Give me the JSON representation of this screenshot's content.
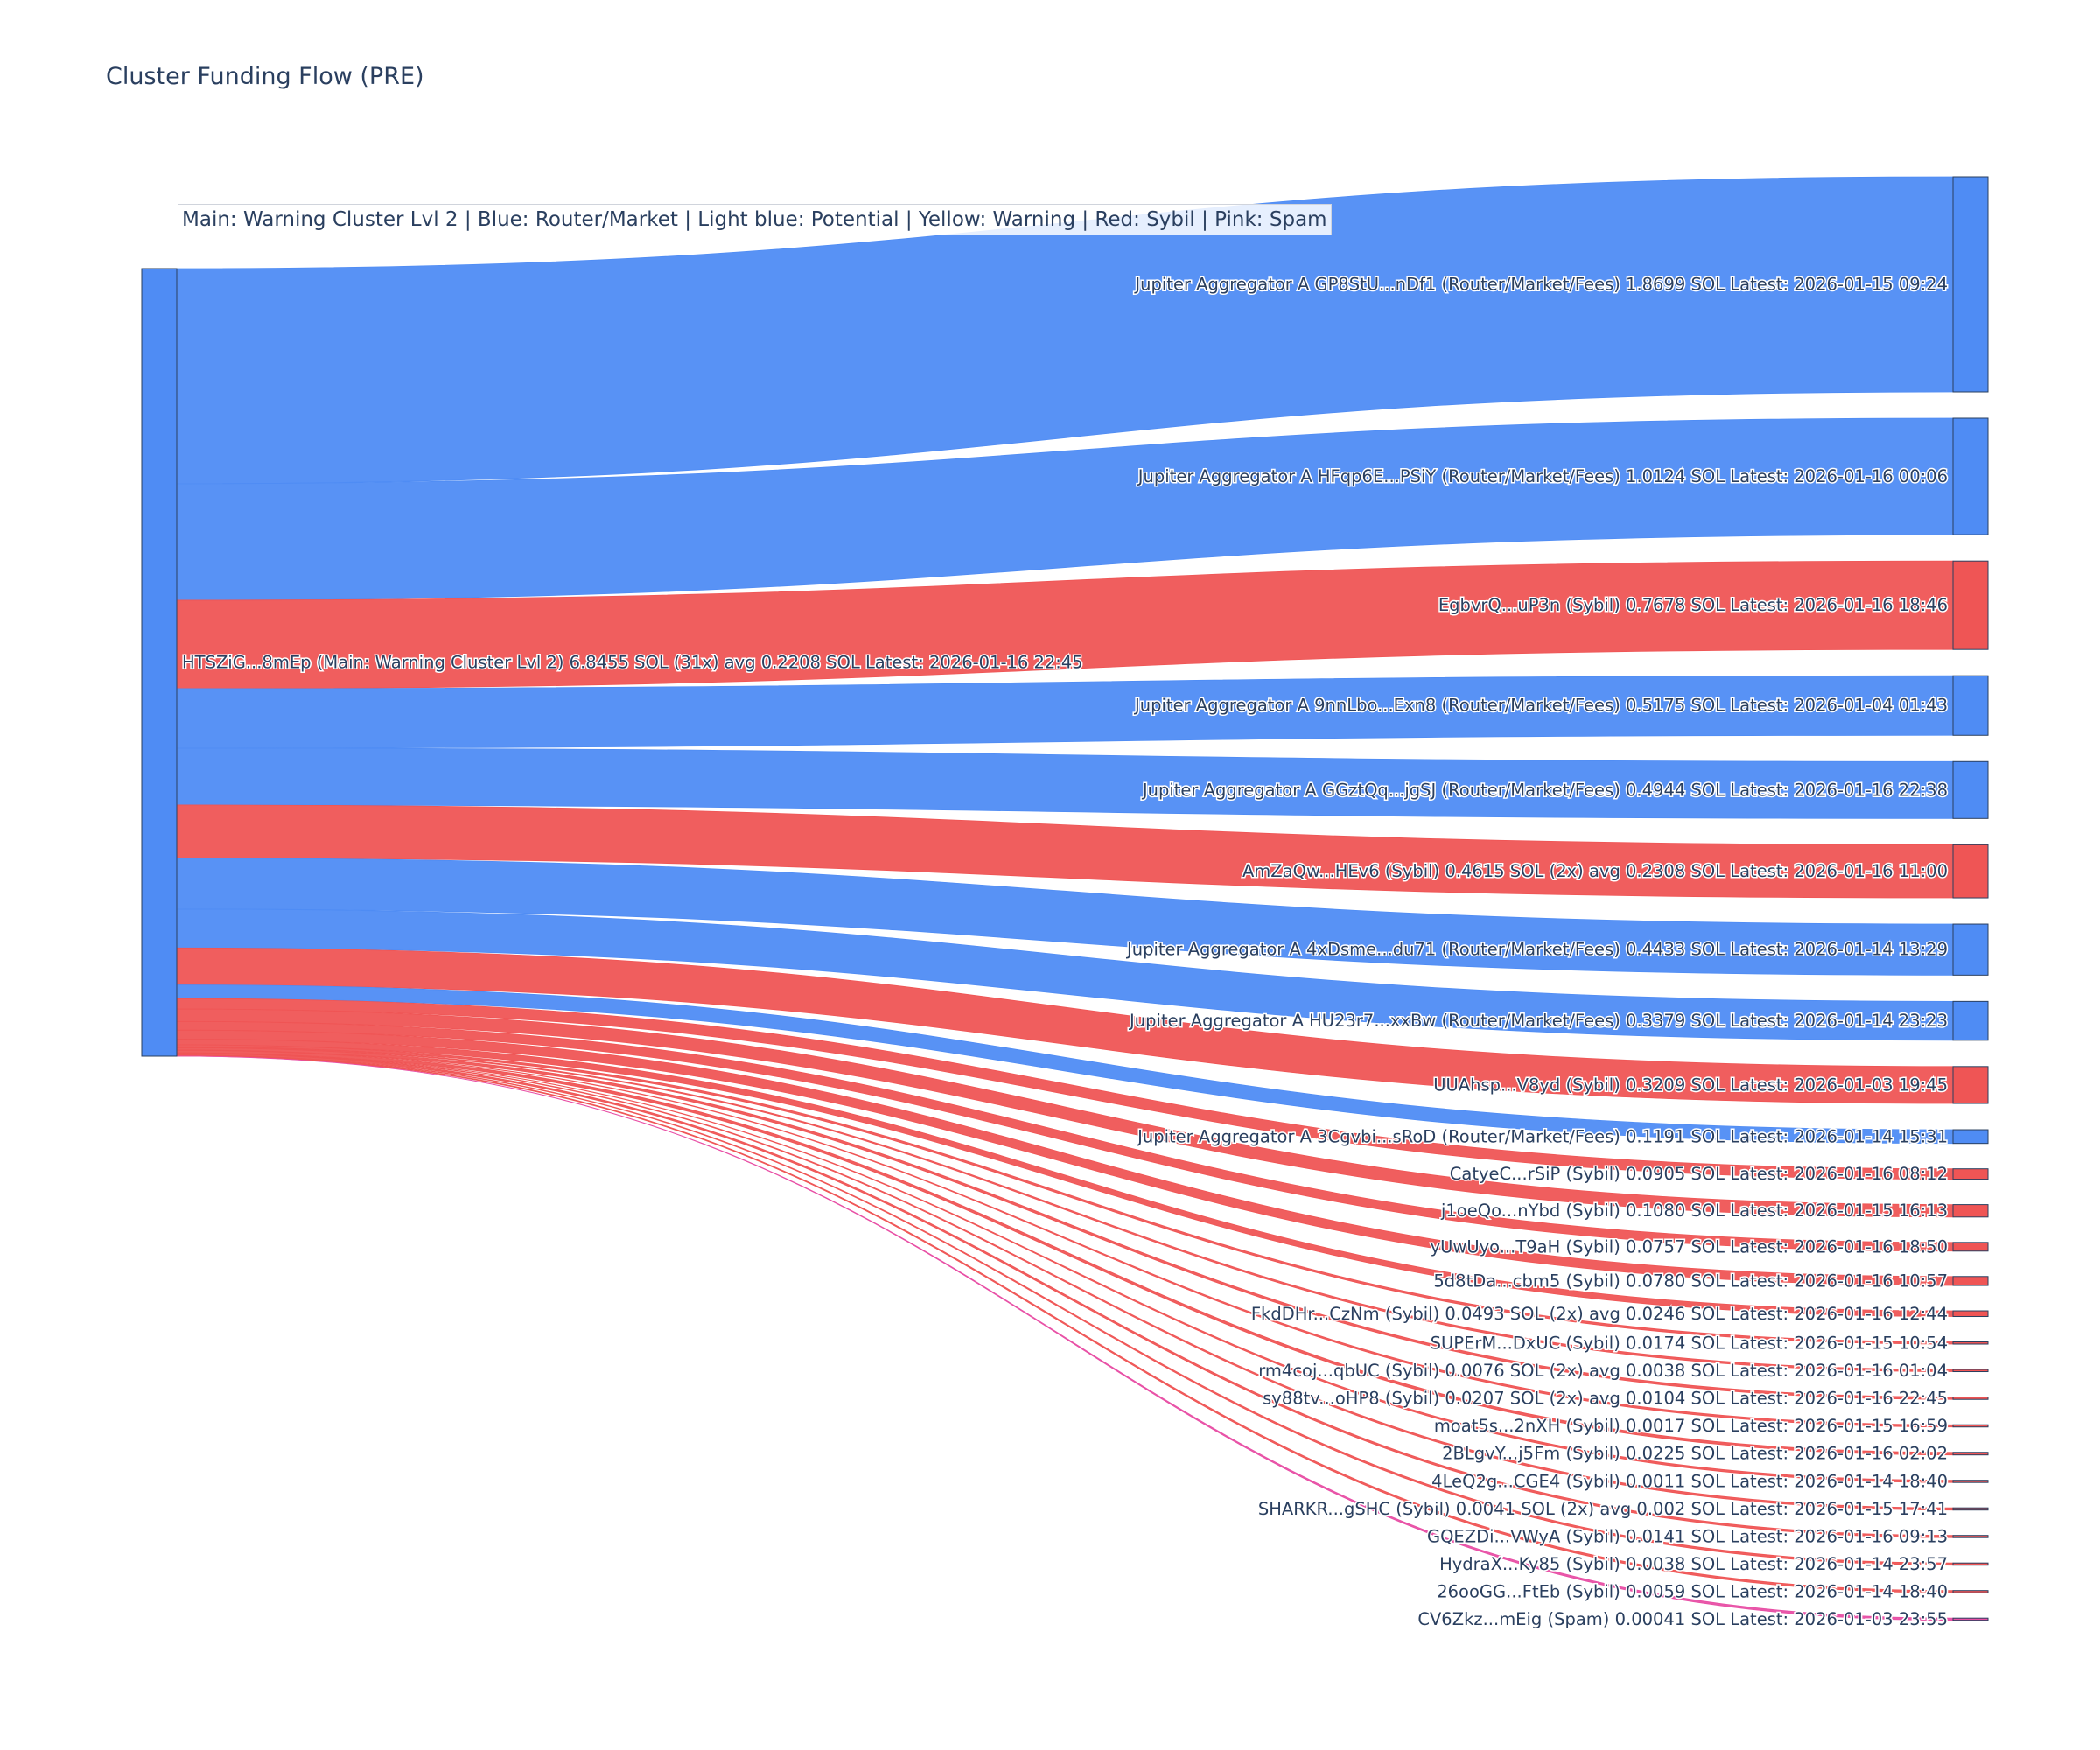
{
  "chart_data": {
    "type": "sankey",
    "title": "Cluster Funding Flow (PRE)",
    "legend_note": "Main: Warning Cluster Lvl 2  |  Blue: Router/Market | Light blue: Potential | Yellow: Warning | Red: Sybil | Pink: Spam",
    "colors": {
      "router": "#4f8cf4",
      "sybil": "#ef5555",
      "spam": "#e84fa5",
      "label_text": "#2a3f5f",
      "node_border": "#2a3f5f"
    },
    "source": {
      "label": "HTSZiG...8mEp (Main: Warning Cluster Lvl 2) 6.8455 SOL (31x) avg 0.2208 SOL Latest: 2026-01-16 22:45",
      "category": "router",
      "total": 6.8455
    },
    "targets": [
      {
        "label": "Jupiter Aggregator A GP8StU...nDf1 (Router/Market/Fees) 1.8699 SOL Latest: 2026-01-15 09:24",
        "value": 1.8699,
        "category": "router"
      },
      {
        "label": "Jupiter Aggregator A HFqp6E...PSiY (Router/Market/Fees) 1.0124 SOL Latest: 2026-01-16 00:06",
        "value": 1.0124,
        "category": "router"
      },
      {
        "label": "EgbvrQ...uP3n (Sybil) 0.7678 SOL Latest: 2026-01-16 18:46",
        "value": 0.7678,
        "category": "sybil"
      },
      {
        "label": "Jupiter Aggregator A 9nnLbo...Exn8 (Router/Market/Fees) 0.5175 SOL Latest: 2026-01-04 01:43",
        "value": 0.5175,
        "category": "router"
      },
      {
        "label": "Jupiter Aggregator A GGztQq...jgSJ (Router/Market/Fees) 0.4944 SOL Latest: 2026-01-16 22:38",
        "value": 0.4944,
        "category": "router"
      },
      {
        "label": "AmZaQw...HEv6 (Sybil) 0.4615 SOL (2x) avg 0.2308 SOL Latest: 2026-01-16 11:00",
        "value": 0.4615,
        "category": "sybil"
      },
      {
        "label": "Jupiter Aggregator A 4xDsme...du71 (Router/Market/Fees) 0.4433 SOL Latest: 2026-01-14 13:29",
        "value": 0.4433,
        "category": "router"
      },
      {
        "label": "Jupiter Aggregator A HU23r7...xxBw (Router/Market/Fees) 0.3379 SOL Latest: 2026-01-14 23:23",
        "value": 0.3379,
        "category": "router"
      },
      {
        "label": "UUAhsp...V8yd (Sybil) 0.3209 SOL Latest: 2026-01-03 19:45",
        "value": 0.3209,
        "category": "sybil"
      },
      {
        "label": "Jupiter Aggregator A 3Cgvbi...sRoD (Router/Market/Fees) 0.1191 SOL Latest: 2026-01-14 15:31",
        "value": 0.1191,
        "category": "router"
      },
      {
        "label": "CatyeC...rSiP (Sybil) 0.0905 SOL Latest: 2026-01-16 08:12",
        "value": 0.0905,
        "category": "sybil"
      },
      {
        "label": "j1oeQo...nYbd (Sybil) 0.1080 SOL Latest: 2026-01-15 16:13",
        "value": 0.108,
        "category": "sybil"
      },
      {
        "label": "yUwUyo...T9aH (Sybil) 0.0757 SOL Latest: 2026-01-16 18:50",
        "value": 0.0757,
        "category": "sybil"
      },
      {
        "label": "5d8tDa...cbm5 (Sybil) 0.0780 SOL Latest: 2026-01-16 10:57",
        "value": 0.078,
        "category": "sybil"
      },
      {
        "label": "FkdDHr...CzNm (Sybil) 0.0493 SOL (2x) avg 0.0246 SOL Latest: 2026-01-16 12:44",
        "value": 0.0493,
        "category": "sybil"
      },
      {
        "label": "SUPErM...DxUC (Sybil) 0.0174 SOL Latest: 2026-01-15 10:54",
        "value": 0.0174,
        "category": "sybil"
      },
      {
        "label": "rm4coj...qbUC (Sybil) 0.0076 SOL (2x) avg 0.0038 SOL Latest: 2026-01-16 01:04",
        "value": 0.0076,
        "category": "sybil"
      },
      {
        "label": "sy88tv...oHP8 (Sybil) 0.0207 SOL (2x) avg 0.0104 SOL Latest: 2026-01-16 22:45",
        "value": 0.0207,
        "category": "sybil"
      },
      {
        "label": "moat5s...2nXH (Sybil) 0.0017 SOL Latest: 2026-01-15 16:59",
        "value": 0.0017,
        "category": "sybil"
      },
      {
        "label": "2BLgvY...j5Fm (Sybil) 0.0225 SOL Latest: 2026-01-16 02:02",
        "value": 0.0225,
        "category": "sybil"
      },
      {
        "label": "4LeQ2g...CGE4 (Sybil) 0.0011 SOL Latest: 2026-01-14 18:40",
        "value": 0.0011,
        "category": "sybil"
      },
      {
        "label": "SHARKR...gSHC (Sybil) 0.0041 SOL (2x) avg 0.002 SOL Latest: 2026-01-15 17:41",
        "value": 0.0041,
        "category": "sybil"
      },
      {
        "label": "GQEZDi...VWyA (Sybil) 0.0141 SOL Latest: 2026-01-16 09:13",
        "value": 0.0141,
        "category": "sybil"
      },
      {
        "label": "HydraX...Ky85 (Sybil) 0.0038 SOL Latest: 2026-01-14 23:57",
        "value": 0.0038,
        "category": "sybil"
      },
      {
        "label": "26ooGG...FtEb (Sybil) 0.0059 SOL Latest: 2026-01-14 18:40",
        "value": 0.0059,
        "category": "sybil"
      },
      {
        "label": "CV6Zkz...mEig (Spam) 0.00041 SOL Latest: 2026-01-03 23:55",
        "value": 0.00041,
        "category": "spam"
      }
    ]
  }
}
